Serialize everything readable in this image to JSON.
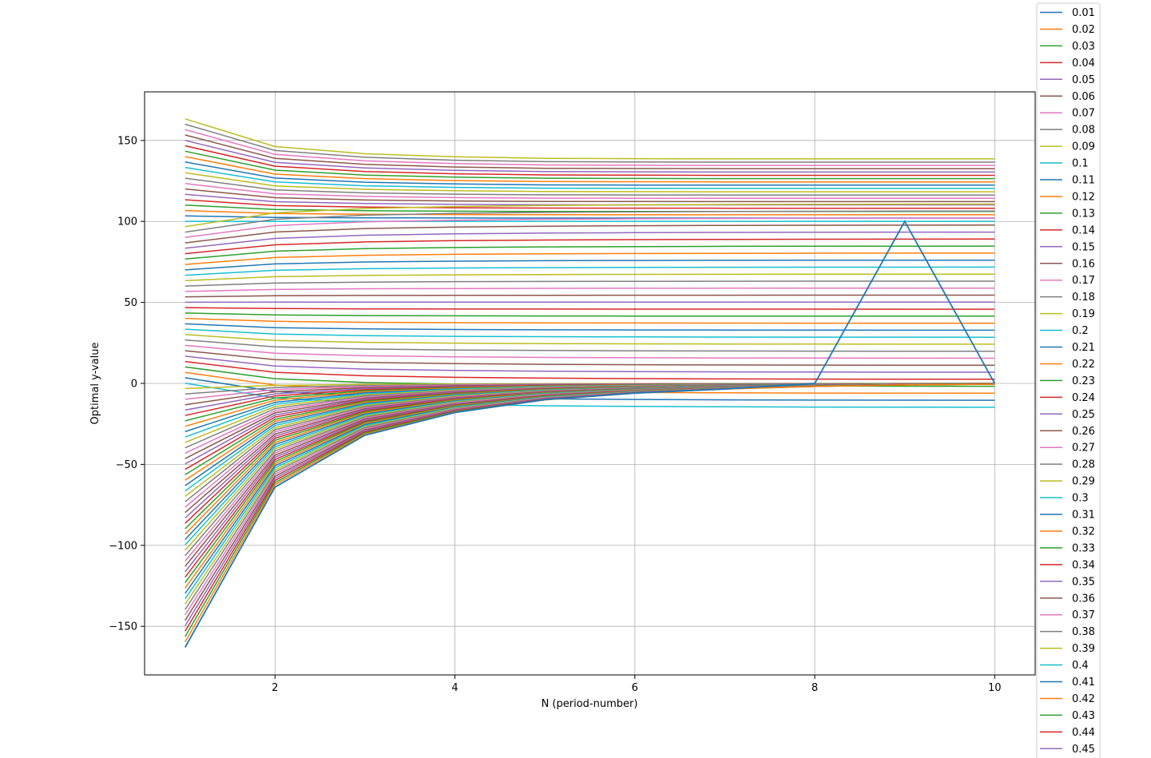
{
  "chart_data": {
    "type": "line",
    "title": "",
    "xlabel": "N (period-number)",
    "ylabel": "Optimal y-value",
    "xlim": [
      0.55,
      10.45
    ],
    "ylim": [
      -180,
      180
    ],
    "xticks": [
      2,
      4,
      6,
      8,
      10
    ],
    "xtick_labels": [
      "2",
      "4",
      "6",
      "8",
      "10"
    ],
    "yticks": [
      150,
      100,
      50,
      0,
      -50,
      -100,
      -150
    ],
    "ytick_labels": [
      "150",
      "100",
      "50",
      "0",
      "−50",
      "−100",
      "−150"
    ],
    "grid": true,
    "legend_position": "upper-right-outside",
    "x": [
      1,
      2,
      3,
      4,
      5,
      6,
      7,
      8,
      9,
      10
    ],
    "series_colors": [
      "#1f77b4",
      "#ff7f0e",
      "#2ca02c",
      "#d62728",
      "#9467bd",
      "#8c564b",
      "#e377c2",
      "#7f7f7f",
      "#bcbd22",
      "#17becf"
    ],
    "series_names": [
      "0.01",
      "0.02",
      "0.03",
      "0.04",
      "0.05",
      "0.06",
      "0.07",
      "0.08",
      "0.09",
      "0.1",
      "0.11",
      "0.12",
      "0.13",
      "0.14",
      "0.15",
      "0.16",
      "0.17",
      "0.18",
      "0.19",
      "0.2",
      "0.21",
      "0.22",
      "0.23",
      "0.24",
      "0.25",
      "0.26",
      "0.27",
      "0.28",
      "0.29",
      "0.3",
      "0.31",
      "0.32",
      "0.33",
      "0.34",
      "0.35",
      "0.36",
      "0.37",
      "0.38",
      "0.39",
      "0.4",
      "0.41",
      "0.42",
      "0.43",
      "0.44",
      "0.45"
    ],
    "model": {
      "first_curve_start": -163,
      "curve_spacing": 3.33,
      "curve_count": 99,
      "decay_below": [
        1,
        0.392,
        0.196,
        0.112,
        0.064,
        0.038,
        0.022,
        0.012,
        0.006,
        0.003
      ],
      "decay_above": [
        1,
        0.73,
        0.66,
        0.63,
        0.615,
        0.612,
        0.61,
        0.61,
        0.61,
        0.61
      ],
      "converge_upper": 100,
      "converge_lower": 0
    },
    "highlight_series": {
      "name": "0.01",
      "values": [
        -163,
        -64,
        -32,
        -18,
        -10,
        -6,
        -3.5,
        0,
        100,
        0
      ]
    }
  }
}
